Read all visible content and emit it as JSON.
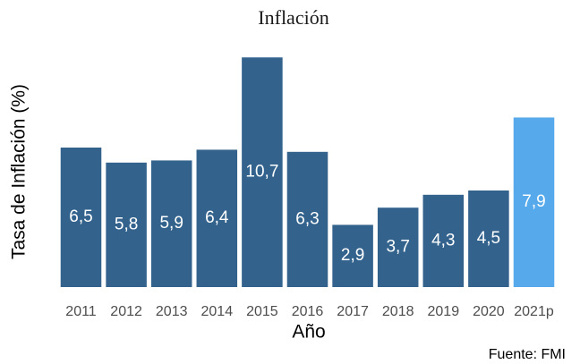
{
  "chart_data": {
    "type": "bar",
    "title": "Inflación",
    "x_label": "Año",
    "y_label": "Tasa de Inflación (%)",
    "caption": "Fuente: FMI",
    "categories": [
      "2011",
      "2012",
      "2013",
      "2014",
      "2015",
      "2016",
      "2017",
      "2018",
      "2019",
      "2020",
      "2021p"
    ],
    "values": [
      6.5,
      5.8,
      5.9,
      6.4,
      10.7,
      6.3,
      2.9,
      3.7,
      4.3,
      4.5,
      7.9
    ],
    "value_labels": [
      "6,5",
      "5,8",
      "5,9",
      "6,4",
      "10,7",
      "6,3",
      "2,9",
      "3,7",
      "4,3",
      "4,5",
      "7,9"
    ],
    "colors": [
      "#33638d",
      "#33638d",
      "#33638d",
      "#33638d",
      "#33638d",
      "#33638d",
      "#33638d",
      "#33638d",
      "#33638d",
      "#33638d",
      "#56aaeb"
    ],
    "ylim": [
      0,
      11
    ]
  }
}
